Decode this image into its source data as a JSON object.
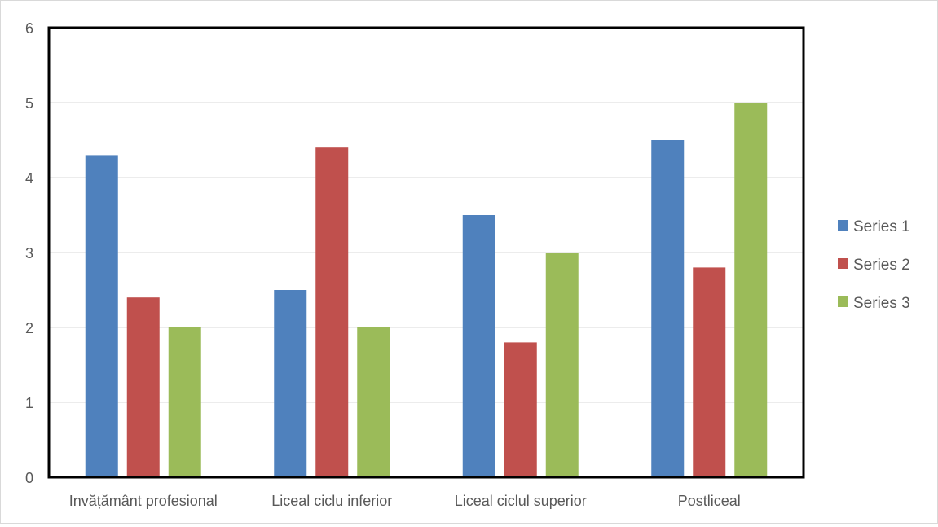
{
  "chart_data": {
    "type": "bar",
    "title": "",
    "xlabel": "",
    "ylabel": "",
    "categories": [
      "Invățământ profesional",
      "Liceal ciclu inferior",
      "Liceal ciclul superior",
      "Postliceal"
    ],
    "series": [
      {
        "name": "Series 1",
        "color": "#4f81bd",
        "values": [
          4.3,
          2.5,
          3.5,
          4.5
        ]
      },
      {
        "name": "Series 2",
        "color": "#c0504d",
        "values": [
          2.4,
          4.4,
          1.8,
          2.8
        ]
      },
      {
        "name": "Series 3",
        "color": "#9bbb59",
        "values": [
          2.0,
          2.0,
          3.0,
          5.0
        ]
      }
    ],
    "ylim": [
      0,
      6
    ],
    "yticks": [
      0,
      1,
      2,
      3,
      4,
      5,
      6
    ],
    "grid": true,
    "legend_position": "right"
  }
}
